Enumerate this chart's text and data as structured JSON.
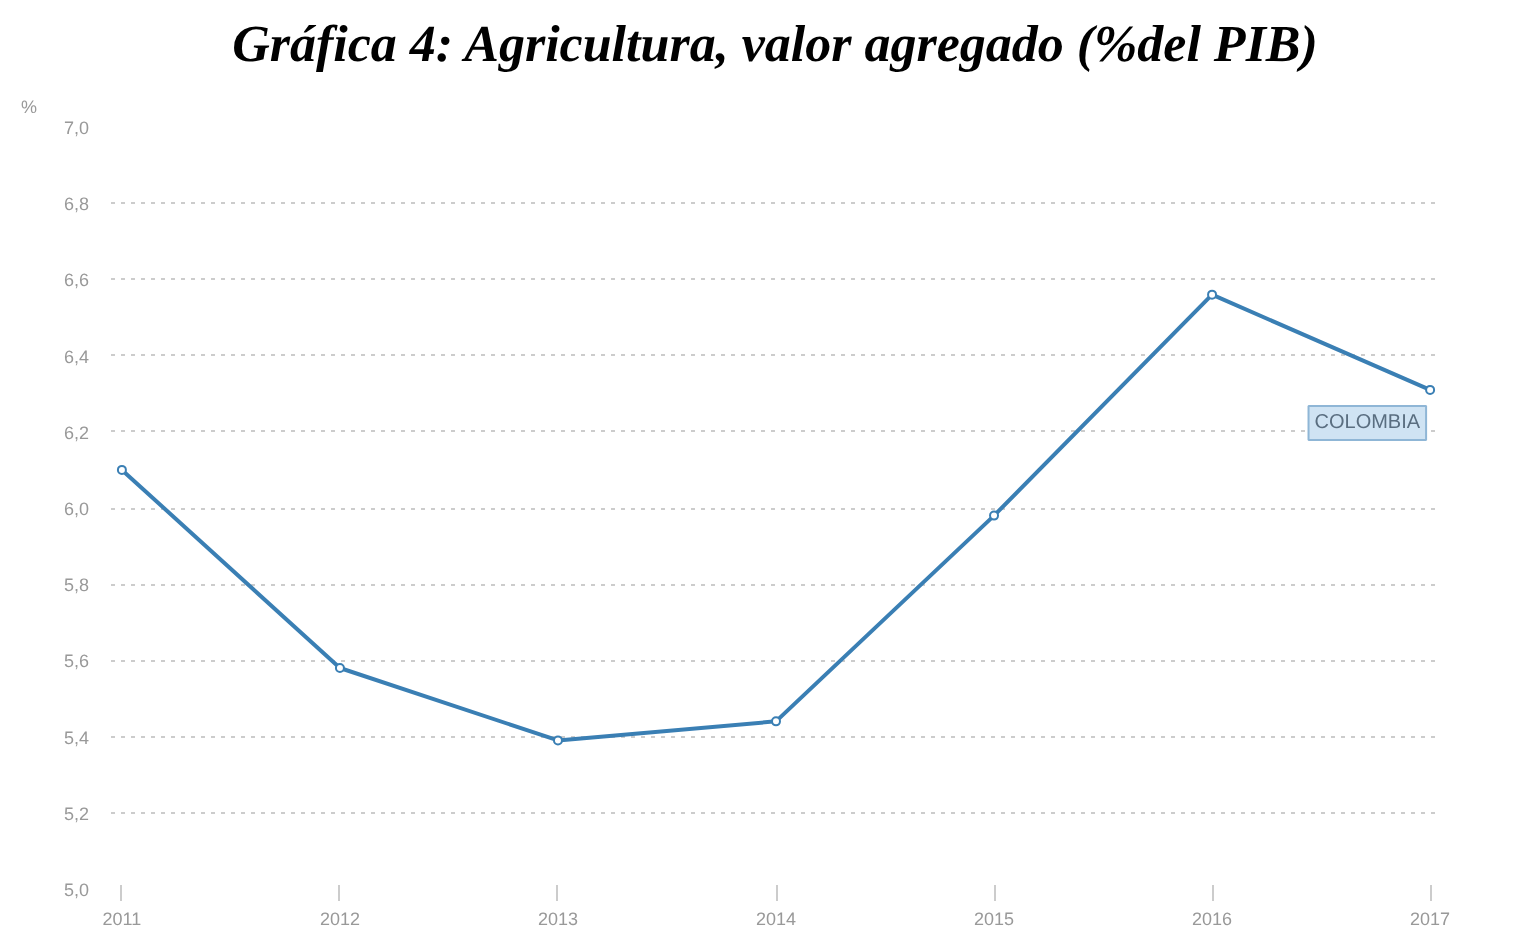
{
  "chart_data": {
    "type": "line",
    "title": "Gráfica 4: Agricultura, valor agregado (%del PIB)",
    "ylabel": "%",
    "x": [
      2011,
      2012,
      2013,
      2014,
      2015,
      2016,
      2017
    ],
    "series": [
      {
        "name": "COLOMBIA",
        "color": "#3a7fb4",
        "values": [
          6.1,
          5.58,
          5.39,
          5.44,
          5.98,
          6.56,
          6.31
        ]
      }
    ],
    "xlim": [
      2010.95,
      2017.05
    ],
    "xticks": [
      2011,
      2012,
      2013,
      2014,
      2015,
      2016,
      2017
    ],
    "ylim": [
      5.0,
      7.0
    ],
    "yticks": [
      {
        "value": 5.0,
        "label": "5,0"
      },
      {
        "value": 5.2,
        "label": "5,2"
      },
      {
        "value": 5.4,
        "label": "5,4"
      },
      {
        "value": 5.6,
        "label": "5,6"
      },
      {
        "value": 5.8,
        "label": "5,8"
      },
      {
        "value": 6.0,
        "label": "6,0"
      },
      {
        "value": 6.2,
        "label": "6,2"
      },
      {
        "value": 6.4,
        "label": "6,4"
      },
      {
        "value": 6.6,
        "label": "6,6"
      },
      {
        "value": 6.8,
        "label": "6,8"
      },
      {
        "value": 7.0,
        "label": "7,0"
      }
    ],
    "grid": "y",
    "marker": "circle",
    "line_style": "solid"
  }
}
